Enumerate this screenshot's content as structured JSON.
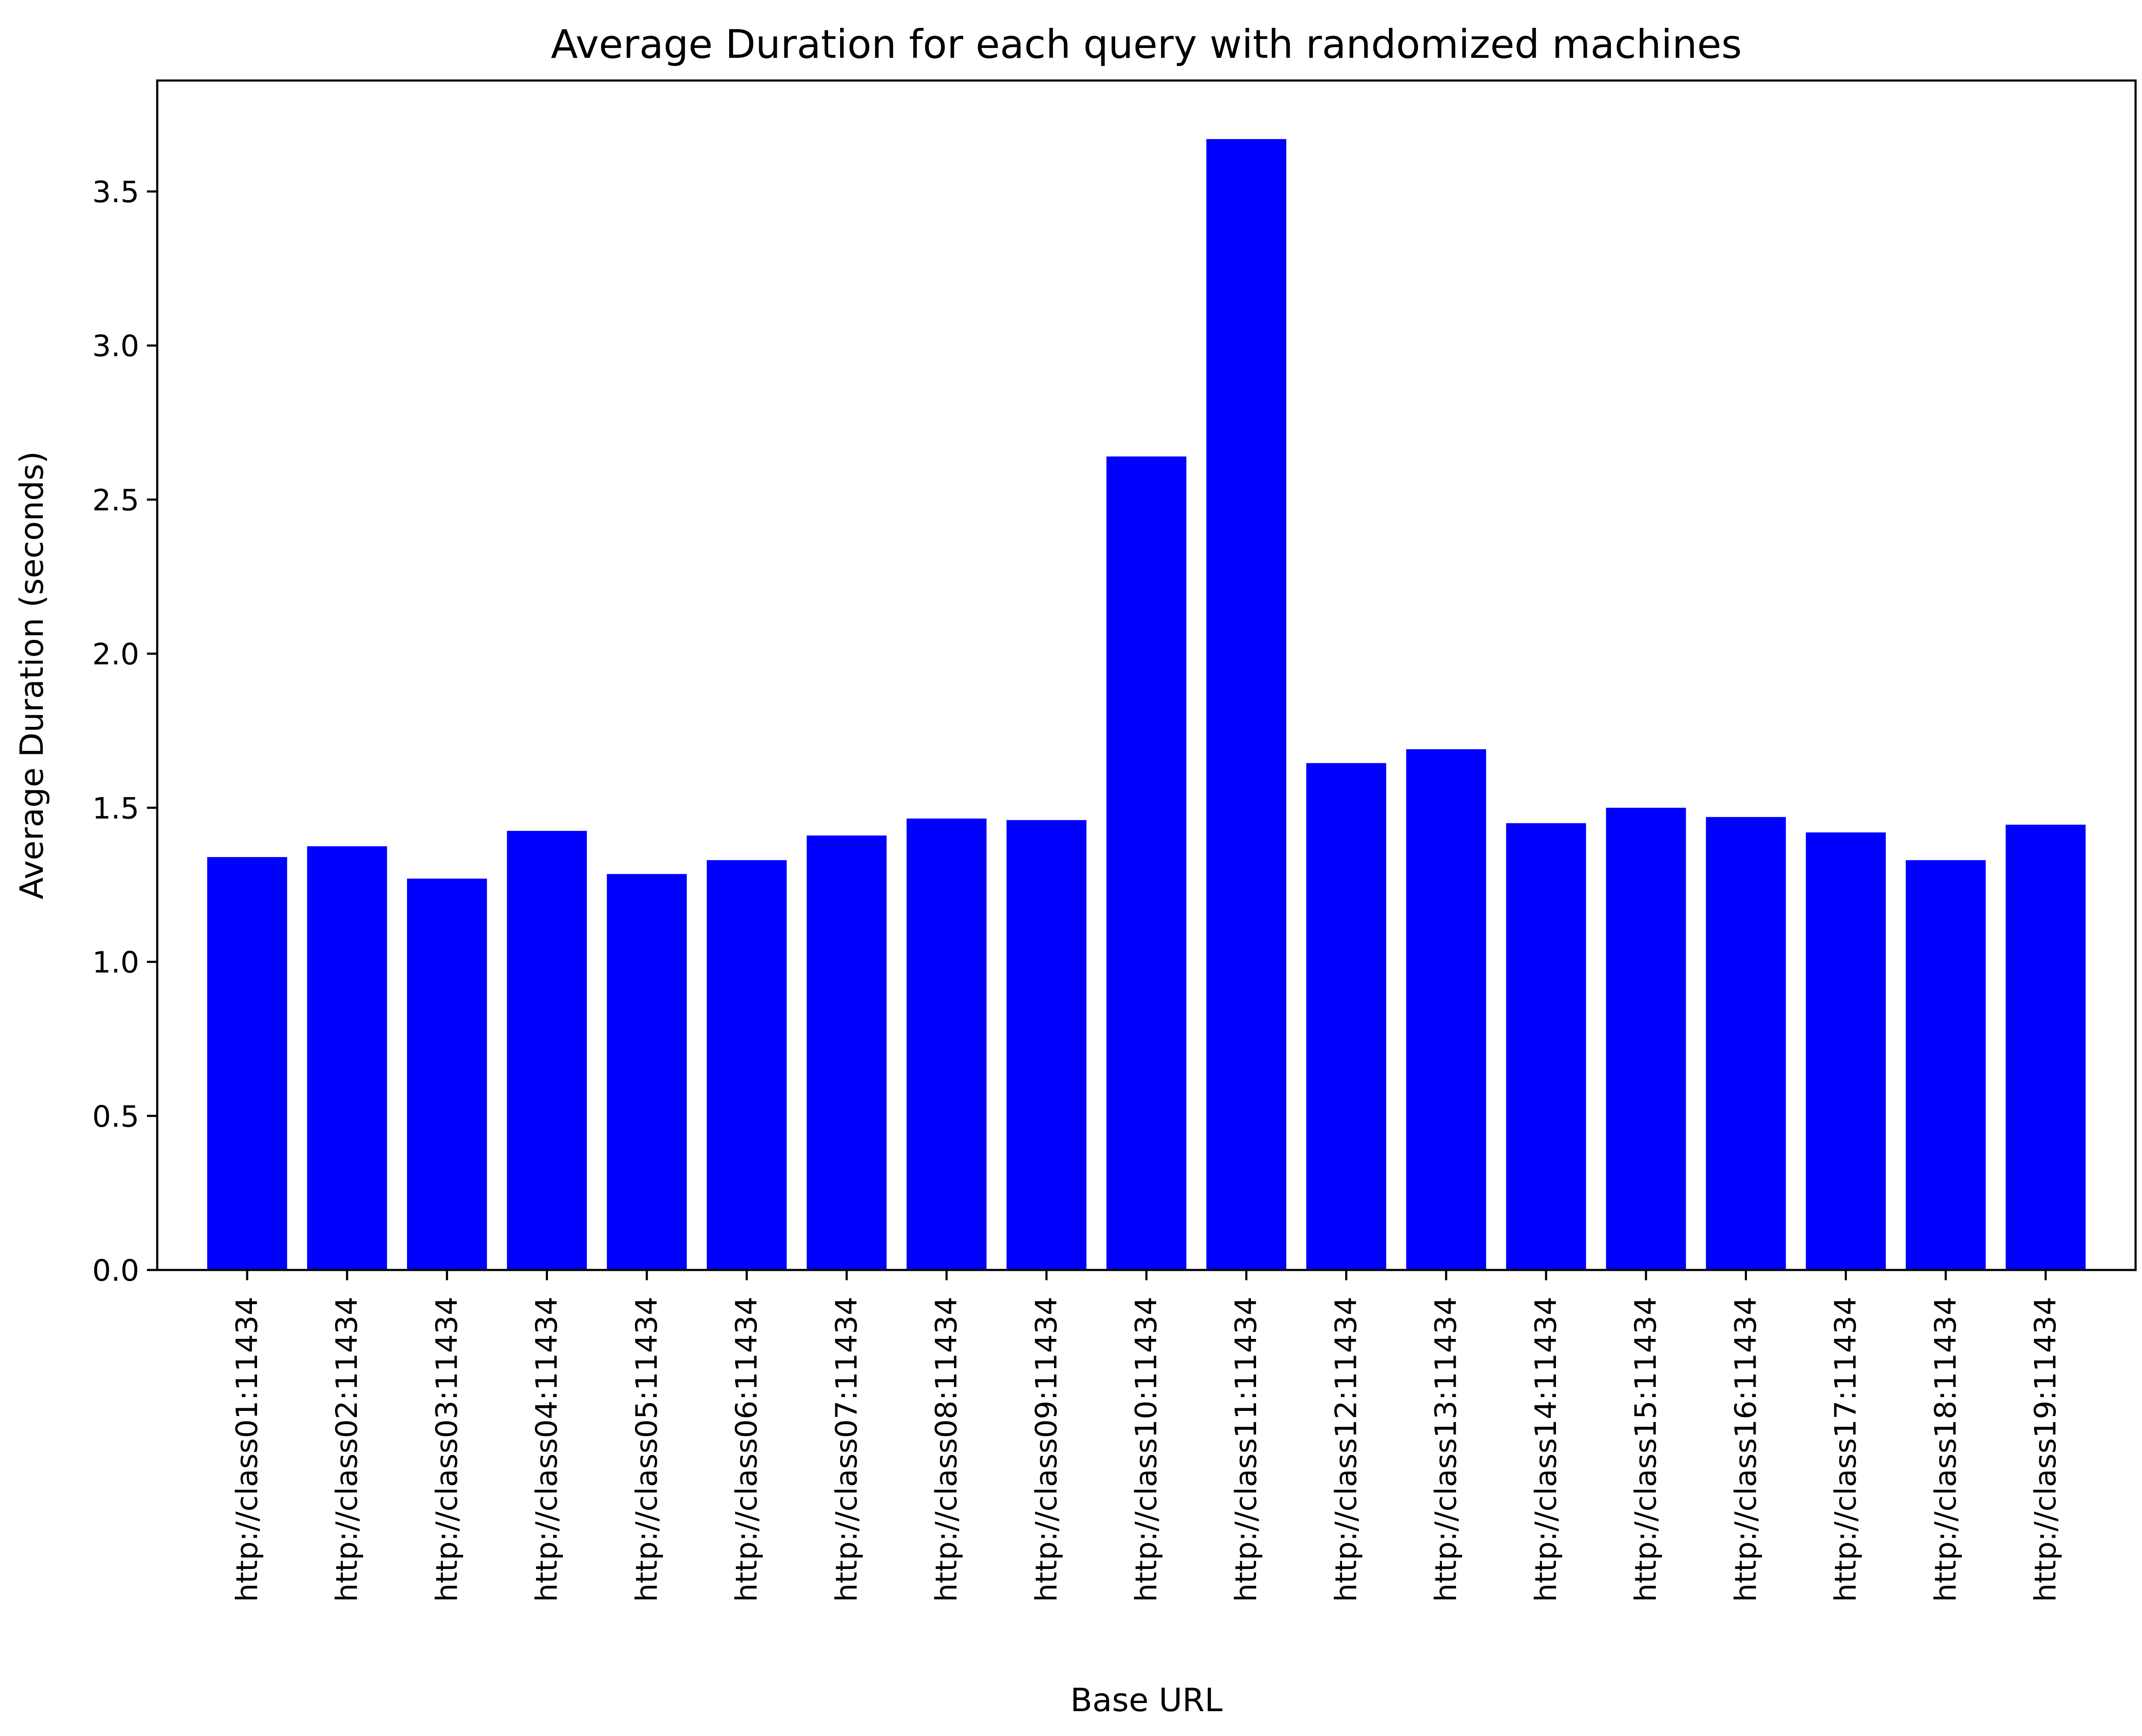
{
  "chart_data": {
    "type": "bar",
    "title": "Average Duration for each query with randomized machines",
    "xlabel": "Base URL",
    "ylabel": "Average Duration (seconds)",
    "ylim": [
      0,
      3.86
    ],
    "yticks": [
      "0.0",
      "0.5",
      "1.0",
      "1.5",
      "2.0",
      "2.5",
      "3.0",
      "3.5"
    ],
    "categories": [
      "http://class01:11434",
      "http://class02:11434",
      "http://class03:11434",
      "http://class04:11434",
      "http://class05:11434",
      "http://class06:11434",
      "http://class07:11434",
      "http://class08:11434",
      "http://class09:11434",
      "http://class10:11434",
      "http://class11:11434",
      "http://class12:11434",
      "http://class13:11434",
      "http://class14:11434",
      "http://class15:11434",
      "http://class16:11434",
      "http://class17:11434",
      "http://class18:11434",
      "http://class19:11434"
    ],
    "values": [
      1.34,
      1.375,
      1.27,
      1.425,
      1.285,
      1.33,
      1.41,
      1.465,
      1.46,
      2.64,
      3.67,
      1.645,
      1.69,
      1.45,
      1.5,
      1.47,
      1.42,
      1.33,
      1.445
    ],
    "bar_color": "#0000ff",
    "grid": false,
    "legend": "none"
  }
}
